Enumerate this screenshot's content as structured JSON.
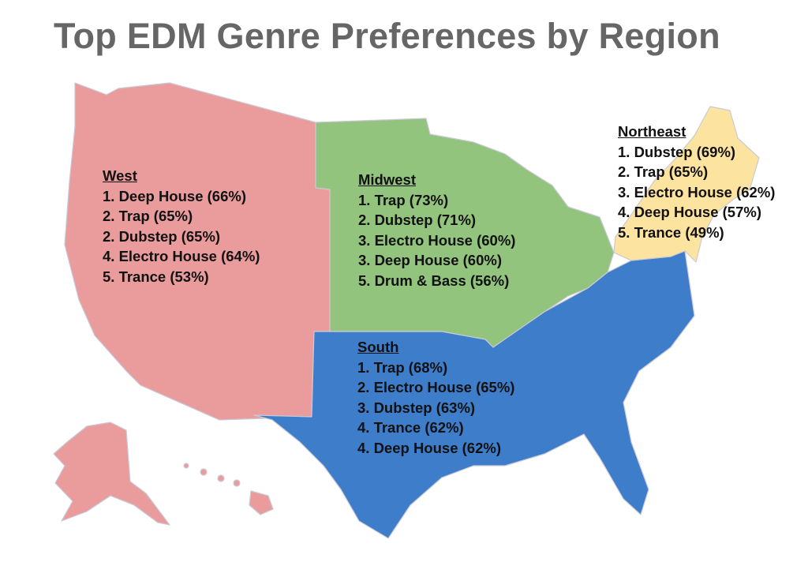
{
  "title": "Top EDM Genre Preferences by Region",
  "colors": {
    "west": "#ea9c9d",
    "midwest": "#93c47d",
    "south": "#3d7dca",
    "northeast": "#fde3a0",
    "border": "#c9c9d6",
    "title": "#666666"
  },
  "regions": {
    "west": {
      "name": "West",
      "items": [
        "1. Deep House (66%)",
        "2. Trap (65%)",
        "2. Dubstep (65%)",
        "4. Electro House (64%)",
        "5. Trance (53%)"
      ]
    },
    "midwest": {
      "name": "Midwest",
      "items": [
        "1. Trap (73%)",
        "2. Dubstep (71%)",
        "3. Electro House (60%)",
        "3. Deep House (60%)",
        "5. Drum & Bass (56%)"
      ]
    },
    "northeast": {
      "name": "Northeast",
      "items": [
        "1. Dubstep (69%)",
        "2. Trap (65%)",
        "3. Electro House (62%)",
        "4. Deep House (57%)",
        "5. Trance (49%)"
      ]
    },
    "south": {
      "name": "South",
      "items": [
        "1. Trap (68%)",
        "2. Electro House (65%)",
        "3. Dubstep (63%)",
        "4. Trance (62%)",
        "4. Deep House (62%)"
      ]
    }
  }
}
